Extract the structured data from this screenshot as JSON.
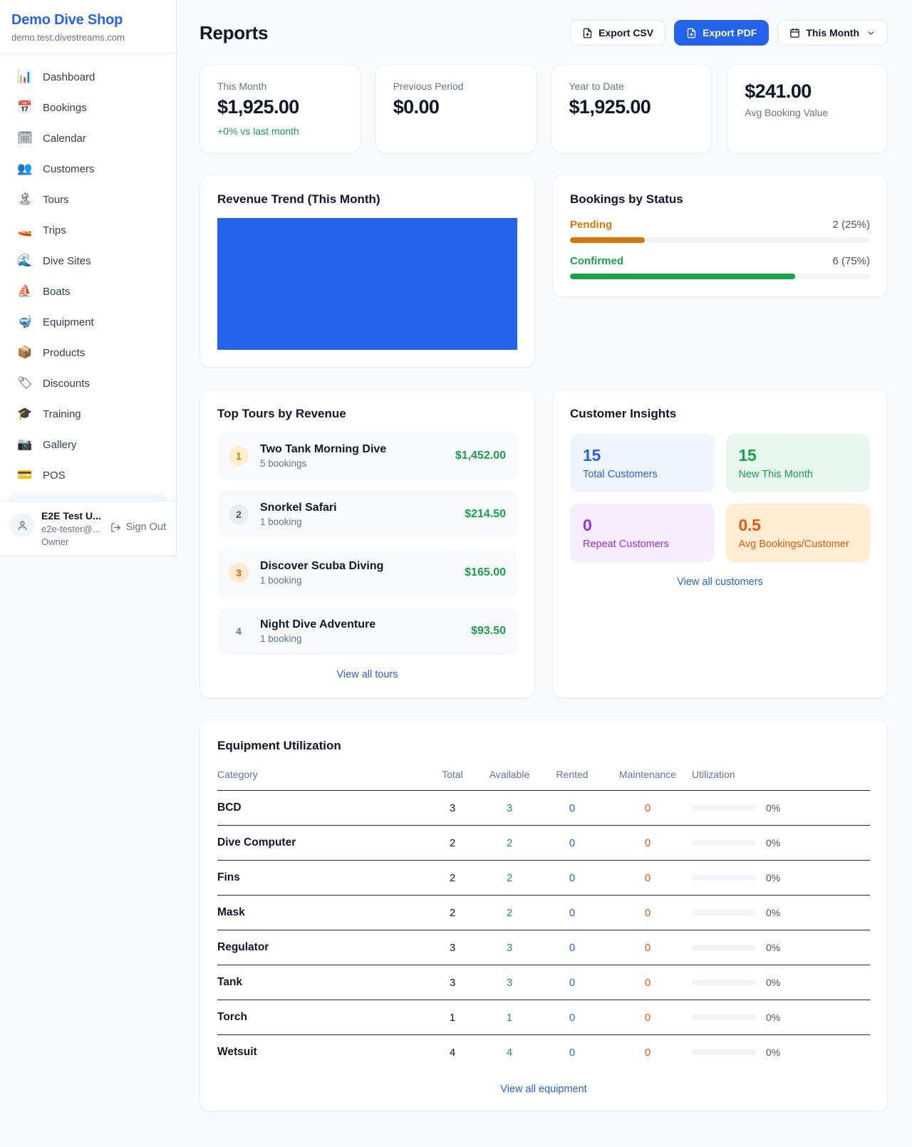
{
  "sidebar": {
    "shop_name": "Demo Dive Shop",
    "shop_domain": "demo.test.divestreams.com",
    "nav": [
      {
        "icon": "📊",
        "icon_name": "bar-chart-icon",
        "label": "Dashboard"
      },
      {
        "icon": "📅",
        "icon_name": "calendar-17-icon",
        "label": "Bookings"
      },
      {
        "icon": "🗓",
        "icon_name": "spiral-calendar-icon",
        "label": "Calendar"
      },
      {
        "icon": "👥",
        "icon_name": "people-icon",
        "label": "Customers"
      },
      {
        "icon": "🏝",
        "icon_name": "island-icon",
        "label": "Tours"
      },
      {
        "icon": "🚤",
        "icon_name": "speedboat-icon",
        "label": "Trips"
      },
      {
        "icon": "🌊",
        "icon_name": "wave-icon",
        "label": "Dive Sites"
      },
      {
        "icon": "⛵",
        "icon_name": "sailboat-icon",
        "label": "Boats"
      },
      {
        "icon": "🤿",
        "icon_name": "diving-mask-icon",
        "label": "Equipment"
      },
      {
        "icon": "📦",
        "icon_name": "package-icon",
        "label": "Products"
      },
      {
        "icon": "🏷",
        "icon_name": "tag-icon",
        "label": "Discounts"
      },
      {
        "icon": "🎓",
        "icon_name": "graduation-cap-icon",
        "label": "Training"
      },
      {
        "icon": "📷",
        "icon_name": "camera-icon",
        "label": "Gallery"
      },
      {
        "icon": "💳",
        "icon_name": "credit-card-icon",
        "label": "POS"
      }
    ],
    "user": {
      "name": "E2E Test U...",
      "email": "e2e-tester@...",
      "role": "Owner",
      "sign_out": "Sign Out"
    }
  },
  "header": {
    "title": "Reports",
    "export_csv": "Export CSV",
    "export_pdf": "Export PDF",
    "period": "This Month"
  },
  "stats": [
    {
      "label": "This Month",
      "value": "$1,925.00",
      "delta": "+0% vs last month"
    },
    {
      "label": "Previous Period",
      "value": "$0.00"
    },
    {
      "label": "Year to Date",
      "value": "$1,925.00"
    },
    {
      "label": "Avg Booking Value",
      "value": "$241.00"
    }
  ],
  "revenue_trend": {
    "title": "Revenue Trend (This Month)",
    "bar_color": "#2563eb"
  },
  "bookings_by_status": {
    "title": "Bookings by Status",
    "items": [
      {
        "label": "Pending",
        "value": "2 (25%)",
        "pct": 25,
        "color": "#d97706"
      },
      {
        "label": "Confirmed",
        "value": "6 (75%)",
        "pct": 75,
        "color": "#16a34a"
      }
    ]
  },
  "top_tours": {
    "title": "Top Tours by Revenue",
    "items": [
      {
        "rank": "1",
        "name": "Two Tank Morning Dive",
        "bookings": "5 bookings",
        "revenue": "$1,452.00"
      },
      {
        "rank": "2",
        "name": "Snorkel Safari",
        "bookings": "1 booking",
        "revenue": "$214.50"
      },
      {
        "rank": "3",
        "name": "Discover Scuba Diving",
        "bookings": "1 booking",
        "revenue": "$165.00"
      },
      {
        "rank": "4",
        "name": "Night Dive Adventure",
        "bookings": "1 booking",
        "revenue": "$93.50"
      }
    ],
    "view_all": "View all tours"
  },
  "customer_insights": {
    "title": "Customer Insights",
    "tiles": [
      {
        "value": "15",
        "label": "Total Customers",
        "color": "#2563eb",
        "bg": "#eff6ff"
      },
      {
        "value": "15",
        "label": "New This Month",
        "color": "#16a34a",
        "bg": "#e8f8ef"
      },
      {
        "value": "0",
        "label": "Repeat Customers",
        "color": "#9333ea",
        "bg": "#f6eefe"
      },
      {
        "value": "0.5",
        "label": "Avg Bookings/Customer",
        "color": "#ea580c",
        "bg": "#fdeed3"
      }
    ],
    "view_all": "View all customers"
  },
  "equipment": {
    "title": "Equipment Utilization",
    "columns": [
      "Category",
      "Total",
      "Available",
      "Rented",
      "Maintenance",
      "Utilization"
    ],
    "rows": [
      {
        "category": "BCD",
        "total": "3",
        "available": "3",
        "rented": "0",
        "maintenance": "0",
        "utilization": "0%"
      },
      {
        "category": "Dive Computer",
        "total": "2",
        "available": "2",
        "rented": "0",
        "maintenance": "0",
        "utilization": "0%"
      },
      {
        "category": "Fins",
        "total": "2",
        "available": "2",
        "rented": "0",
        "maintenance": "0",
        "utilization": "0%"
      },
      {
        "category": "Mask",
        "total": "2",
        "available": "2",
        "rented": "0",
        "maintenance": "0",
        "utilization": "0%"
      },
      {
        "category": "Regulator",
        "total": "3",
        "available": "3",
        "rented": "0",
        "maintenance": "0",
        "utilization": "0%"
      },
      {
        "category": "Tank",
        "total": "3",
        "available": "3",
        "rented": "0",
        "maintenance": "0",
        "utilization": "0%"
      },
      {
        "category": "Torch",
        "total": "1",
        "available": "1",
        "rented": "0",
        "maintenance": "0",
        "utilization": "0%"
      },
      {
        "category": "Wetsuit",
        "total": "4",
        "available": "4",
        "rented": "0",
        "maintenance": "0",
        "utilization": "0%"
      }
    ],
    "view_all": "View all equipment"
  }
}
